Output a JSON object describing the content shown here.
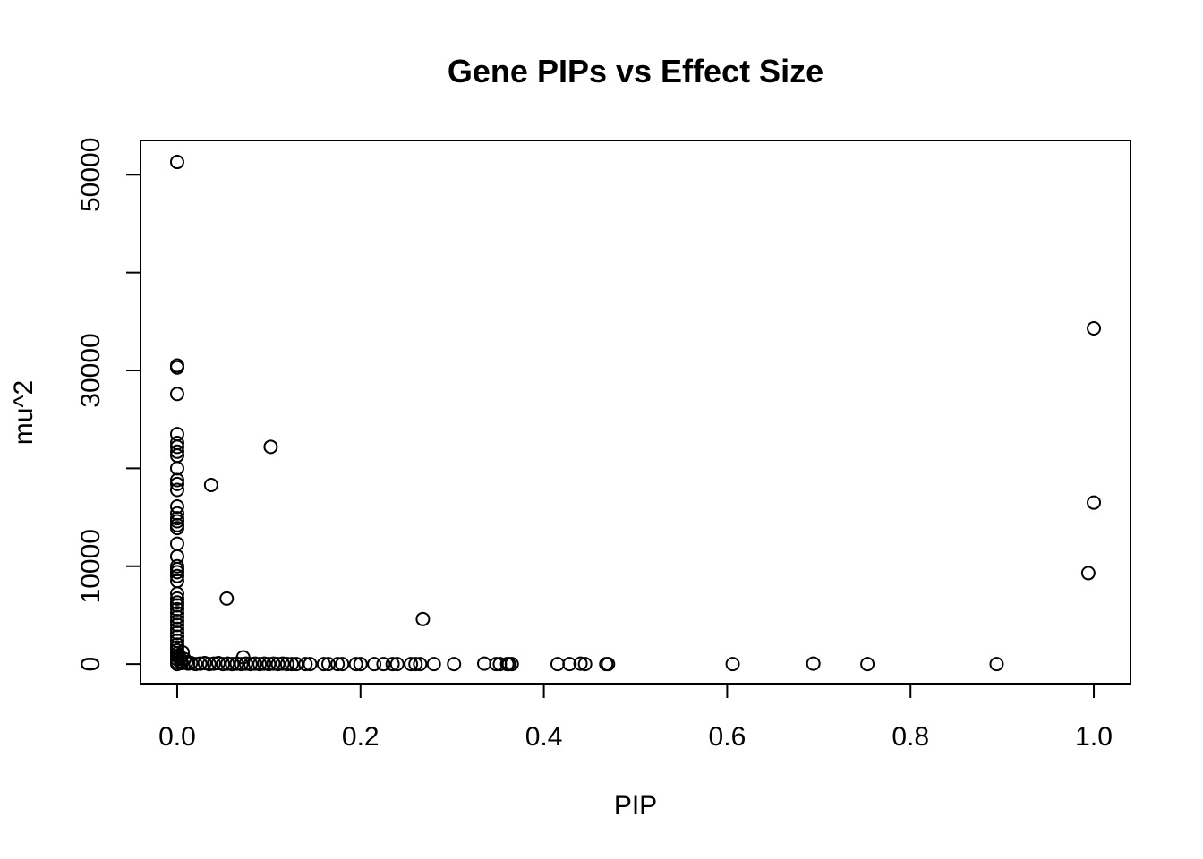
{
  "chart_data": {
    "type": "scatter",
    "title": "Gene PIPs vs Effect Size",
    "xlabel": "PIP",
    "ylabel": "mu^2",
    "xlim": [
      -0.04,
      1.04
    ],
    "ylim": [
      -2000,
      53500
    ],
    "xticks": [
      0.0,
      0.2,
      0.4,
      0.6,
      0.8,
      1.0
    ],
    "xtick_labels": [
      "0.0",
      "0.2",
      "0.4",
      "0.6",
      "0.8",
      "1.0"
    ],
    "yticks": [
      0,
      10000,
      20000,
      30000,
      40000,
      50000
    ],
    "ytick_labels": [
      "0",
      "10000",
      "",
      "30000",
      "",
      "50000"
    ],
    "grid": false,
    "legend": "none",
    "point_color": "#000000",
    "series": [
      {
        "points": [
          [
            0.0,
            51300
          ],
          [
            0.0,
            30500
          ],
          [
            0.0,
            30300
          ],
          [
            0.0,
            27600
          ],
          [
            0.0,
            23500
          ],
          [
            0.0,
            22600
          ],
          [
            0.0,
            22200
          ],
          [
            0.0,
            21700
          ],
          [
            0.0,
            21300
          ],
          [
            0.0,
            20000
          ],
          [
            0.0,
            18800
          ],
          [
            0.0,
            18400
          ],
          [
            0.0,
            17800
          ],
          [
            0.0,
            16100
          ],
          [
            0.0,
            15400
          ],
          [
            0.0,
            14900
          ],
          [
            0.0,
            14600
          ],
          [
            0.0,
            14200
          ],
          [
            0.0,
            13900
          ],
          [
            0.0,
            12300
          ],
          [
            0.0,
            11000
          ],
          [
            0.0,
            10000
          ],
          [
            0.0,
            9700
          ],
          [
            0.0,
            9400
          ],
          [
            0.0,
            9000
          ],
          [
            0.0,
            8500
          ],
          [
            0.0,
            7200
          ],
          [
            0.0,
            6700
          ],
          [
            0.0,
            6300
          ],
          [
            0.0,
            6000
          ],
          [
            0.0,
            5600
          ],
          [
            0.0,
            5200
          ],
          [
            0.0,
            4800
          ],
          [
            0.0,
            4400
          ],
          [
            0.0,
            4000
          ],
          [
            0.0,
            3600
          ],
          [
            0.0,
            3200
          ],
          [
            0.0,
            2800
          ],
          [
            0.0,
            2400
          ],
          [
            0.0,
            2000
          ],
          [
            0.0,
            1700
          ],
          [
            0.0,
            1400
          ],
          [
            0.0,
            1100
          ],
          [
            0.0,
            800
          ],
          [
            0.0,
            500
          ],
          [
            0.0,
            200
          ],
          [
            0.0,
            0
          ],
          [
            0.002,
            900
          ],
          [
            0.003,
            600
          ],
          [
            0.004,
            300
          ],
          [
            0.005,
            100
          ],
          [
            0.006,
            1200
          ],
          [
            0.008,
            500
          ],
          [
            0.01,
            200
          ],
          [
            0.012,
            50
          ],
          [
            0.015,
            100
          ],
          [
            0.02,
            0
          ],
          [
            0.025,
            50
          ],
          [
            0.03,
            100
          ],
          [
            0.035,
            0
          ],
          [
            0.037,
            18300
          ],
          [
            0.04,
            50
          ],
          [
            0.045,
            100
          ],
          [
            0.05,
            0
          ],
          [
            0.054,
            6700
          ],
          [
            0.055,
            50
          ],
          [
            0.06,
            0
          ],
          [
            0.065,
            50
          ],
          [
            0.07,
            0
          ],
          [
            0.072,
            700
          ],
          [
            0.075,
            50
          ],
          [
            0.08,
            0
          ],
          [
            0.085,
            50
          ],
          [
            0.09,
            0
          ],
          [
            0.095,
            50
          ],
          [
            0.1,
            0
          ],
          [
            0.102,
            22200
          ],
          [
            0.105,
            50
          ],
          [
            0.11,
            0
          ],
          [
            0.115,
            50
          ],
          [
            0.12,
            0
          ],
          [
            0.125,
            0
          ],
          [
            0.13,
            0
          ],
          [
            0.14,
            0
          ],
          [
            0.145,
            0
          ],
          [
            0.16,
            0
          ],
          [
            0.165,
            0
          ],
          [
            0.175,
            0
          ],
          [
            0.18,
            0
          ],
          [
            0.195,
            0
          ],
          [
            0.2,
            0
          ],
          [
            0.215,
            0
          ],
          [
            0.225,
            0
          ],
          [
            0.235,
            0
          ],
          [
            0.24,
            0
          ],
          [
            0.255,
            0
          ],
          [
            0.26,
            0
          ],
          [
            0.265,
            0
          ],
          [
            0.268,
            4600
          ],
          [
            0.28,
            0
          ],
          [
            0.302,
            0
          ],
          [
            0.335,
            50
          ],
          [
            0.348,
            0
          ],
          [
            0.352,
            0
          ],
          [
            0.36,
            0
          ],
          [
            0.362,
            0
          ],
          [
            0.365,
            0
          ],
          [
            0.415,
            0
          ],
          [
            0.428,
            0
          ],
          [
            0.44,
            50
          ],
          [
            0.445,
            0
          ],
          [
            0.468,
            0
          ],
          [
            0.47,
            0
          ],
          [
            0.606,
            0
          ],
          [
            0.694,
            50
          ],
          [
            0.753,
            0
          ],
          [
            0.894,
            0
          ],
          [
            0.994,
            9300
          ],
          [
            1.0,
            34300
          ],
          [
            1.0,
            16500
          ]
        ]
      }
    ]
  }
}
